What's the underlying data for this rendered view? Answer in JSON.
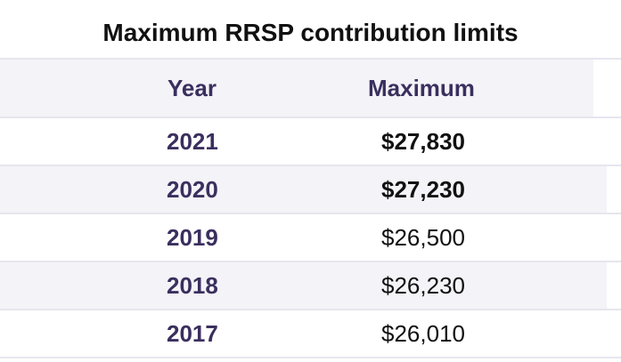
{
  "title": "Maximum RRSP contribution limits",
  "headers": {
    "year": "Year",
    "maximum": "Maximum"
  },
  "rows": [
    {
      "year": "2021",
      "maximum": "$27,830",
      "bold": true
    },
    {
      "year": "2020",
      "maximum": "$27,230",
      "bold": true
    },
    {
      "year": "2019",
      "maximum": "$26,500",
      "bold": false
    },
    {
      "year": "2018",
      "maximum": "$26,230",
      "bold": false
    },
    {
      "year": "2017",
      "maximum": "$26,010",
      "bold": false
    }
  ]
}
